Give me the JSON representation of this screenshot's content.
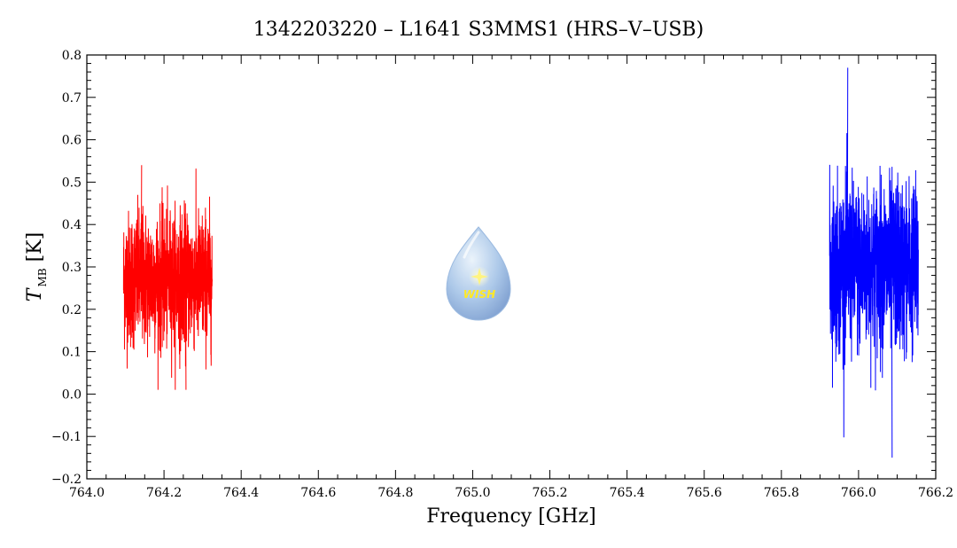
{
  "chart_data": {
    "type": "line",
    "title": "1342203220 – L1641 S3MMS1 (HRS–V–USB)",
    "xlabel": "Frequency [GHz]",
    "ylabel": "T",
    "ylabel_sub": "MB",
    "ylabel_unit": " [K]",
    "xlim": [
      764.0,
      766.2
    ],
    "ylim": [
      -0.2,
      0.8
    ],
    "xticks": [
      764.0,
      764.2,
      764.4,
      764.6,
      764.8,
      765.0,
      765.2,
      765.4,
      765.6,
      765.8,
      766.0,
      766.2
    ],
    "xtick_labels": [
      "764.0",
      "764.2",
      "764.4",
      "764.6",
      "764.8",
      "765.0",
      "765.2",
      "765.4",
      "765.6",
      "765.8",
      "766.0",
      "766.2"
    ],
    "yticks": [
      -0.2,
      -0.1,
      0.0,
      0.1,
      0.2,
      0.3,
      0.4,
      0.5,
      0.6,
      0.7,
      0.8
    ],
    "ytick_labels": [
      "−0.2",
      "−0.1",
      "0.0",
      "0.1",
      "0.2",
      "0.3",
      "0.4",
      "0.5",
      "0.6",
      "0.7",
      "0.8"
    ],
    "grid": false,
    "series": [
      {
        "color": "#ff0000",
        "x_range": [
          764.095,
          764.325
        ],
        "mean": 0.27,
        "noise": 0.08,
        "y_min": 0.01,
        "y_max": 0.54
      },
      {
        "color": "#0000ff",
        "x_range": [
          765.925,
          766.155
        ],
        "mean": 0.3,
        "noise": 0.1,
        "y_min": -0.15,
        "y_max": 0.77
      }
    ]
  },
  "logo": {
    "text": "WISH",
    "icon": "wish-droplet-logo"
  }
}
